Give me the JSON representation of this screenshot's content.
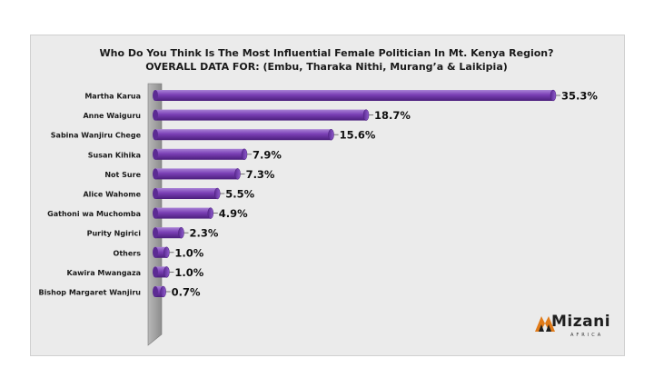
{
  "chart_data": {
    "type": "bar",
    "orientation": "horizontal",
    "title": "Who Do You Think Is The Most Influential Female Politician In Mt. Kenya Region?",
    "subtitle": "OVERALL DATA FOR: (Embu, Tharaka Nithi, Murang’a & Laikipia)",
    "categories": [
      "Martha Karua",
      "Anne Waiguru",
      "Sabina Wanjiru Chege",
      "Susan Kihika",
      "Not Sure",
      "Alice Wahome",
      "Gathoni wa Muchomba",
      "Purity Ngirici",
      "Others",
      "Kawira Mwangaza",
      "Bishop Margaret Wanjiru"
    ],
    "values": [
      35.3,
      18.7,
      15.6,
      7.9,
      7.3,
      5.5,
      4.9,
      2.3,
      1.0,
      1.0,
      0.7
    ],
    "data_labels": [
      "35.3%",
      "18.7%",
      "15.6%",
      "7.9%",
      "7.3%",
      "5.5%",
      "4.9%",
      "2.3%",
      "1.0%",
      "1.0%",
      "0.7%"
    ],
    "xlim": [
      0,
      35.3
    ],
    "grid": false,
    "legend": "none",
    "bar_color": "#7a3fb5"
  },
  "logo": {
    "word": "Mizani",
    "sub": "AFRICA"
  }
}
